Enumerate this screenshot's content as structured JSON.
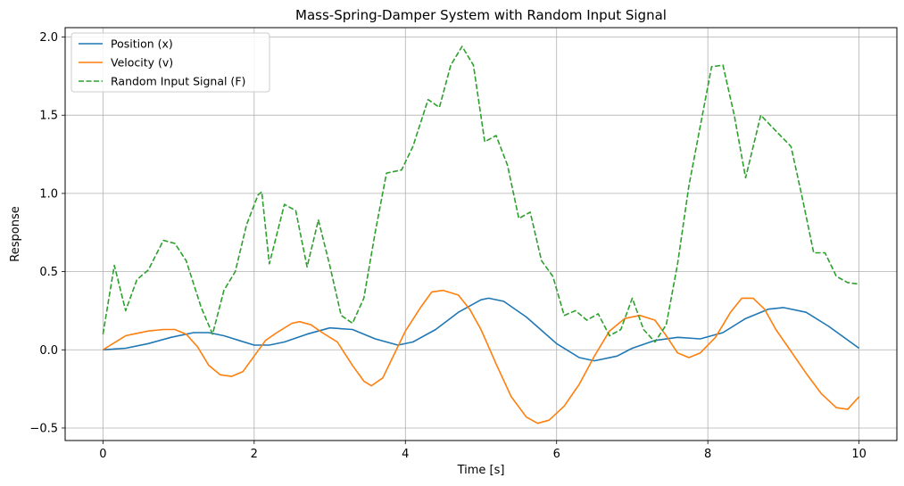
{
  "chart_data": {
    "type": "line",
    "title": "Mass-Spring-Damper System with Random Input Signal",
    "xlabel": "Time [s]",
    "ylabel": "Response",
    "xlim": [
      -0.5,
      10.5
    ],
    "ylim": [
      -0.58,
      2.06
    ],
    "xticks": [
      0,
      2,
      4,
      6,
      8,
      10
    ],
    "xtick_labels": [
      "0",
      "2",
      "4",
      "6",
      "8",
      "10"
    ],
    "yticks": [
      -0.5,
      0.0,
      0.5,
      1.0,
      1.5,
      2.0
    ],
    "ytick_labels": [
      "−0.5",
      "0.0",
      "0.5",
      "1.0",
      "1.5",
      "2.0"
    ],
    "grid": true,
    "legend_position": "top-left",
    "series": [
      {
        "name": "Position (x)",
        "color": "#1f77b4",
        "style": "solid",
        "x": [
          0,
          0.3,
          0.6,
          0.9,
          1.2,
          1.4,
          1.6,
          1.8,
          2.0,
          2.2,
          2.4,
          2.7,
          3.0,
          3.3,
          3.6,
          3.9,
          4.1,
          4.4,
          4.7,
          5.0,
          5.1,
          5.3,
          5.6,
          6.0,
          6.3,
          6.5,
          6.8,
          7.0,
          7.3,
          7.6,
          7.9,
          8.2,
          8.5,
          8.8,
          9.0,
          9.3,
          9.6,
          10.0
        ],
        "y": [
          0.0,
          0.01,
          0.04,
          0.08,
          0.11,
          0.11,
          0.09,
          0.06,
          0.03,
          0.03,
          0.05,
          0.1,
          0.14,
          0.13,
          0.07,
          0.03,
          0.05,
          0.13,
          0.24,
          0.32,
          0.33,
          0.31,
          0.21,
          0.04,
          -0.05,
          -0.07,
          -0.04,
          0.01,
          0.06,
          0.08,
          0.07,
          0.11,
          0.2,
          0.26,
          0.27,
          0.24,
          0.15,
          0.01
        ]
      },
      {
        "name": "Velocity (v)",
        "color": "#ff7f0e",
        "style": "solid",
        "x": [
          0,
          0.1,
          0.2,
          0.3,
          0.4,
          0.6,
          0.8,
          0.95,
          1.1,
          1.25,
          1.4,
          1.55,
          1.7,
          1.85,
          2.0,
          2.15,
          2.3,
          2.5,
          2.6,
          2.75,
          2.9,
          3.1,
          3.3,
          3.45,
          3.55,
          3.7,
          3.85,
          4.0,
          4.2,
          4.35,
          4.5,
          4.7,
          4.85,
          5.0,
          5.2,
          5.4,
          5.6,
          5.75,
          5.9,
          6.1,
          6.3,
          6.5,
          6.7,
          6.9,
          7.1,
          7.3,
          7.45,
          7.6,
          7.75,
          7.9,
          8.1,
          8.3,
          8.45,
          8.6,
          8.75,
          8.9,
          9.1,
          9.3,
          9.5,
          9.7,
          9.85,
          10.0
        ],
        "y": [
          0.0,
          0.03,
          0.06,
          0.09,
          0.1,
          0.12,
          0.13,
          0.13,
          0.1,
          0.02,
          -0.1,
          -0.16,
          -0.17,
          -0.14,
          -0.04,
          0.06,
          0.11,
          0.17,
          0.18,
          0.16,
          0.11,
          0.05,
          -0.1,
          -0.2,
          -0.23,
          -0.18,
          -0.03,
          0.12,
          0.27,
          0.37,
          0.38,
          0.35,
          0.26,
          0.13,
          -0.09,
          -0.3,
          -0.43,
          -0.47,
          -0.45,
          -0.36,
          -0.22,
          -0.04,
          0.12,
          0.2,
          0.22,
          0.19,
          0.09,
          -0.02,
          -0.05,
          -0.02,
          0.08,
          0.24,
          0.33,
          0.33,
          0.26,
          0.13,
          -0.01,
          -0.15,
          -0.28,
          -0.37,
          -0.38,
          -0.3
        ]
      },
      {
        "name": "Random Input Signal (F)",
        "color": "#2ca02c",
        "style": "dashed",
        "x": [
          0.0,
          0.15,
          0.3,
          0.45,
          0.6,
          0.8,
          0.95,
          1.1,
          1.3,
          1.45,
          1.6,
          1.75,
          1.9,
          2.05,
          2.1,
          2.2,
          2.4,
          2.55,
          2.7,
          2.85,
          3.0,
          3.15,
          3.3,
          3.45,
          3.6,
          3.75,
          3.95,
          4.1,
          4.3,
          4.45,
          4.6,
          4.75,
          4.9,
          5.05,
          5.2,
          5.35,
          5.5,
          5.65,
          5.8,
          5.95,
          6.1,
          6.25,
          6.4,
          6.55,
          6.7,
          6.85,
          7.0,
          7.15,
          7.3,
          7.45,
          7.6,
          7.75,
          7.9,
          8.05,
          8.2,
          8.35,
          8.5,
          8.7,
          8.9,
          9.1,
          9.25,
          9.4,
          9.55,
          9.7,
          9.85,
          10.0
        ],
        "y": [
          0.1,
          0.54,
          0.25,
          0.45,
          0.51,
          0.7,
          0.68,
          0.57,
          0.27,
          0.1,
          0.38,
          0.5,
          0.8,
          0.99,
          1.01,
          0.55,
          0.93,
          0.89,
          0.53,
          0.83,
          0.54,
          0.22,
          0.17,
          0.33,
          0.75,
          1.13,
          1.15,
          1.3,
          1.6,
          1.55,
          1.82,
          1.94,
          1.82,
          1.33,
          1.37,
          1.18,
          0.84,
          0.88,
          0.57,
          0.47,
          0.22,
          0.25,
          0.19,
          0.23,
          0.09,
          0.13,
          0.33,
          0.13,
          0.05,
          0.16,
          0.55,
          1.05,
          1.43,
          1.81,
          1.82,
          1.5,
          1.1,
          1.5,
          1.4,
          1.3,
          0.97,
          0.62,
          0.62,
          0.47,
          0.43,
          0.42
        ]
      }
    ]
  }
}
